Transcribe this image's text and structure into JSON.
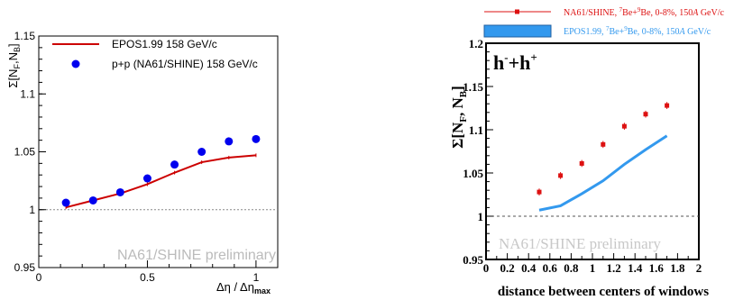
{
  "chart_data": [
    {
      "type": "scatter",
      "xlabel": "Δη / Δη",
      "xlabel_sub": "max",
      "ylabel": "Σ[N",
      "ylabel_sub1": "F",
      "ylabel_mid": ",N",
      "ylabel_sub2": "B",
      "ylabel_end": "]",
      "xlim": [
        0,
        1.1
      ],
      "ylim": [
        0.95,
        1.15
      ],
      "x_ticks": [
        "0",
        "0.5",
        "1"
      ],
      "x_tick_values": [
        0,
        0.5,
        1
      ],
      "y_ticks": [
        "0.95",
        "1",
        "1.05",
        "1.1",
        "1.15"
      ],
      "y_tick_values": [
        0.95,
        1.0,
        1.05,
        1.1,
        1.15
      ],
      "reference_line": 1.0,
      "watermark": "NA61/SHINE preliminary",
      "legend_position": "top-left",
      "series": [
        {
          "name": "EPOS1.99 158 GeV/c",
          "style": "line",
          "color": "#cc0000",
          "x": [
            0.125,
            0.25,
            0.375,
            0.5,
            0.625,
            0.75,
            0.875,
            1.0
          ],
          "y": [
            1.002,
            1.008,
            1.014,
            1.022,
            1.032,
            1.041,
            1.045,
            1.047
          ]
        },
        {
          "name": "p+p (NA61/SHINE) 158 GeV/c",
          "style": "markers",
          "color": "#0000ee",
          "x": [
            0.125,
            0.25,
            0.375,
            0.5,
            0.625,
            0.75,
            0.875,
            1.0
          ],
          "y": [
            1.006,
            1.008,
            1.015,
            1.027,
            1.039,
            1.05,
            1.059,
            1.061
          ]
        }
      ]
    },
    {
      "type": "scatter",
      "xlabel": "distance between centers of windows",
      "ylabel": "Σ[N",
      "ylabel_sub1": "F",
      "ylabel_mid": ", N",
      "ylabel_sub2": "B",
      "ylabel_end": "]",
      "panel_label": "h",
      "panel_label_sup1": "-",
      "panel_label_mid": "+h",
      "panel_label_sup2": "+",
      "xlim": [
        0,
        2
      ],
      "ylim": [
        0.95,
        1.2
      ],
      "x_ticks": [
        "0",
        "0.2",
        "0.4",
        "0.6",
        "0.8",
        "1",
        "1.2",
        "1.4",
        "1.6",
        "1.8",
        "2"
      ],
      "x_tick_values": [
        0,
        0.2,
        0.4,
        0.6,
        0.8,
        1.0,
        1.2,
        1.4,
        1.6,
        1.8,
        2.0
      ],
      "y_ticks": [
        "0.95",
        "1",
        "1.05",
        "1.1",
        "1.15",
        "1.2"
      ],
      "y_tick_values": [
        0.95,
        1.0,
        1.05,
        1.1,
        1.15,
        1.2
      ],
      "reference_line": 1.0,
      "watermark": "NA61/SHINE preliminary",
      "legend_position": "top, outside plot",
      "series": [
        {
          "name_parts": [
            "NA61/SHINE,  ",
            "7",
            "Be+",
            "9",
            "Be, 0-8%, 150",
            "A",
            " GeV/c"
          ],
          "style": "markers-with-errors",
          "color": "#dd1111",
          "x": [
            0.5,
            0.7,
            0.9,
            1.1,
            1.3,
            1.5,
            1.7
          ],
          "y": [
            1.028,
            1.047,
            1.061,
            1.083,
            1.104,
            1.118,
            1.128
          ],
          "err": [
            0.004,
            0.004,
            0.004,
            0.004,
            0.004,
            0.004,
            0.004
          ]
        },
        {
          "name_parts": [
            "EPOS1.99,  ",
            "7",
            "Be+",
            "9",
            "Be, 0-8%, 150",
            "A",
            " GeV/c"
          ],
          "style": "band",
          "color": "#3399ee",
          "x": [
            0.5,
            0.7,
            0.9,
            1.1,
            1.3,
            1.5,
            1.7
          ],
          "y": [
            1.007,
            1.012,
            1.026,
            1.041,
            1.06,
            1.077,
            1.093
          ]
        }
      ]
    }
  ]
}
